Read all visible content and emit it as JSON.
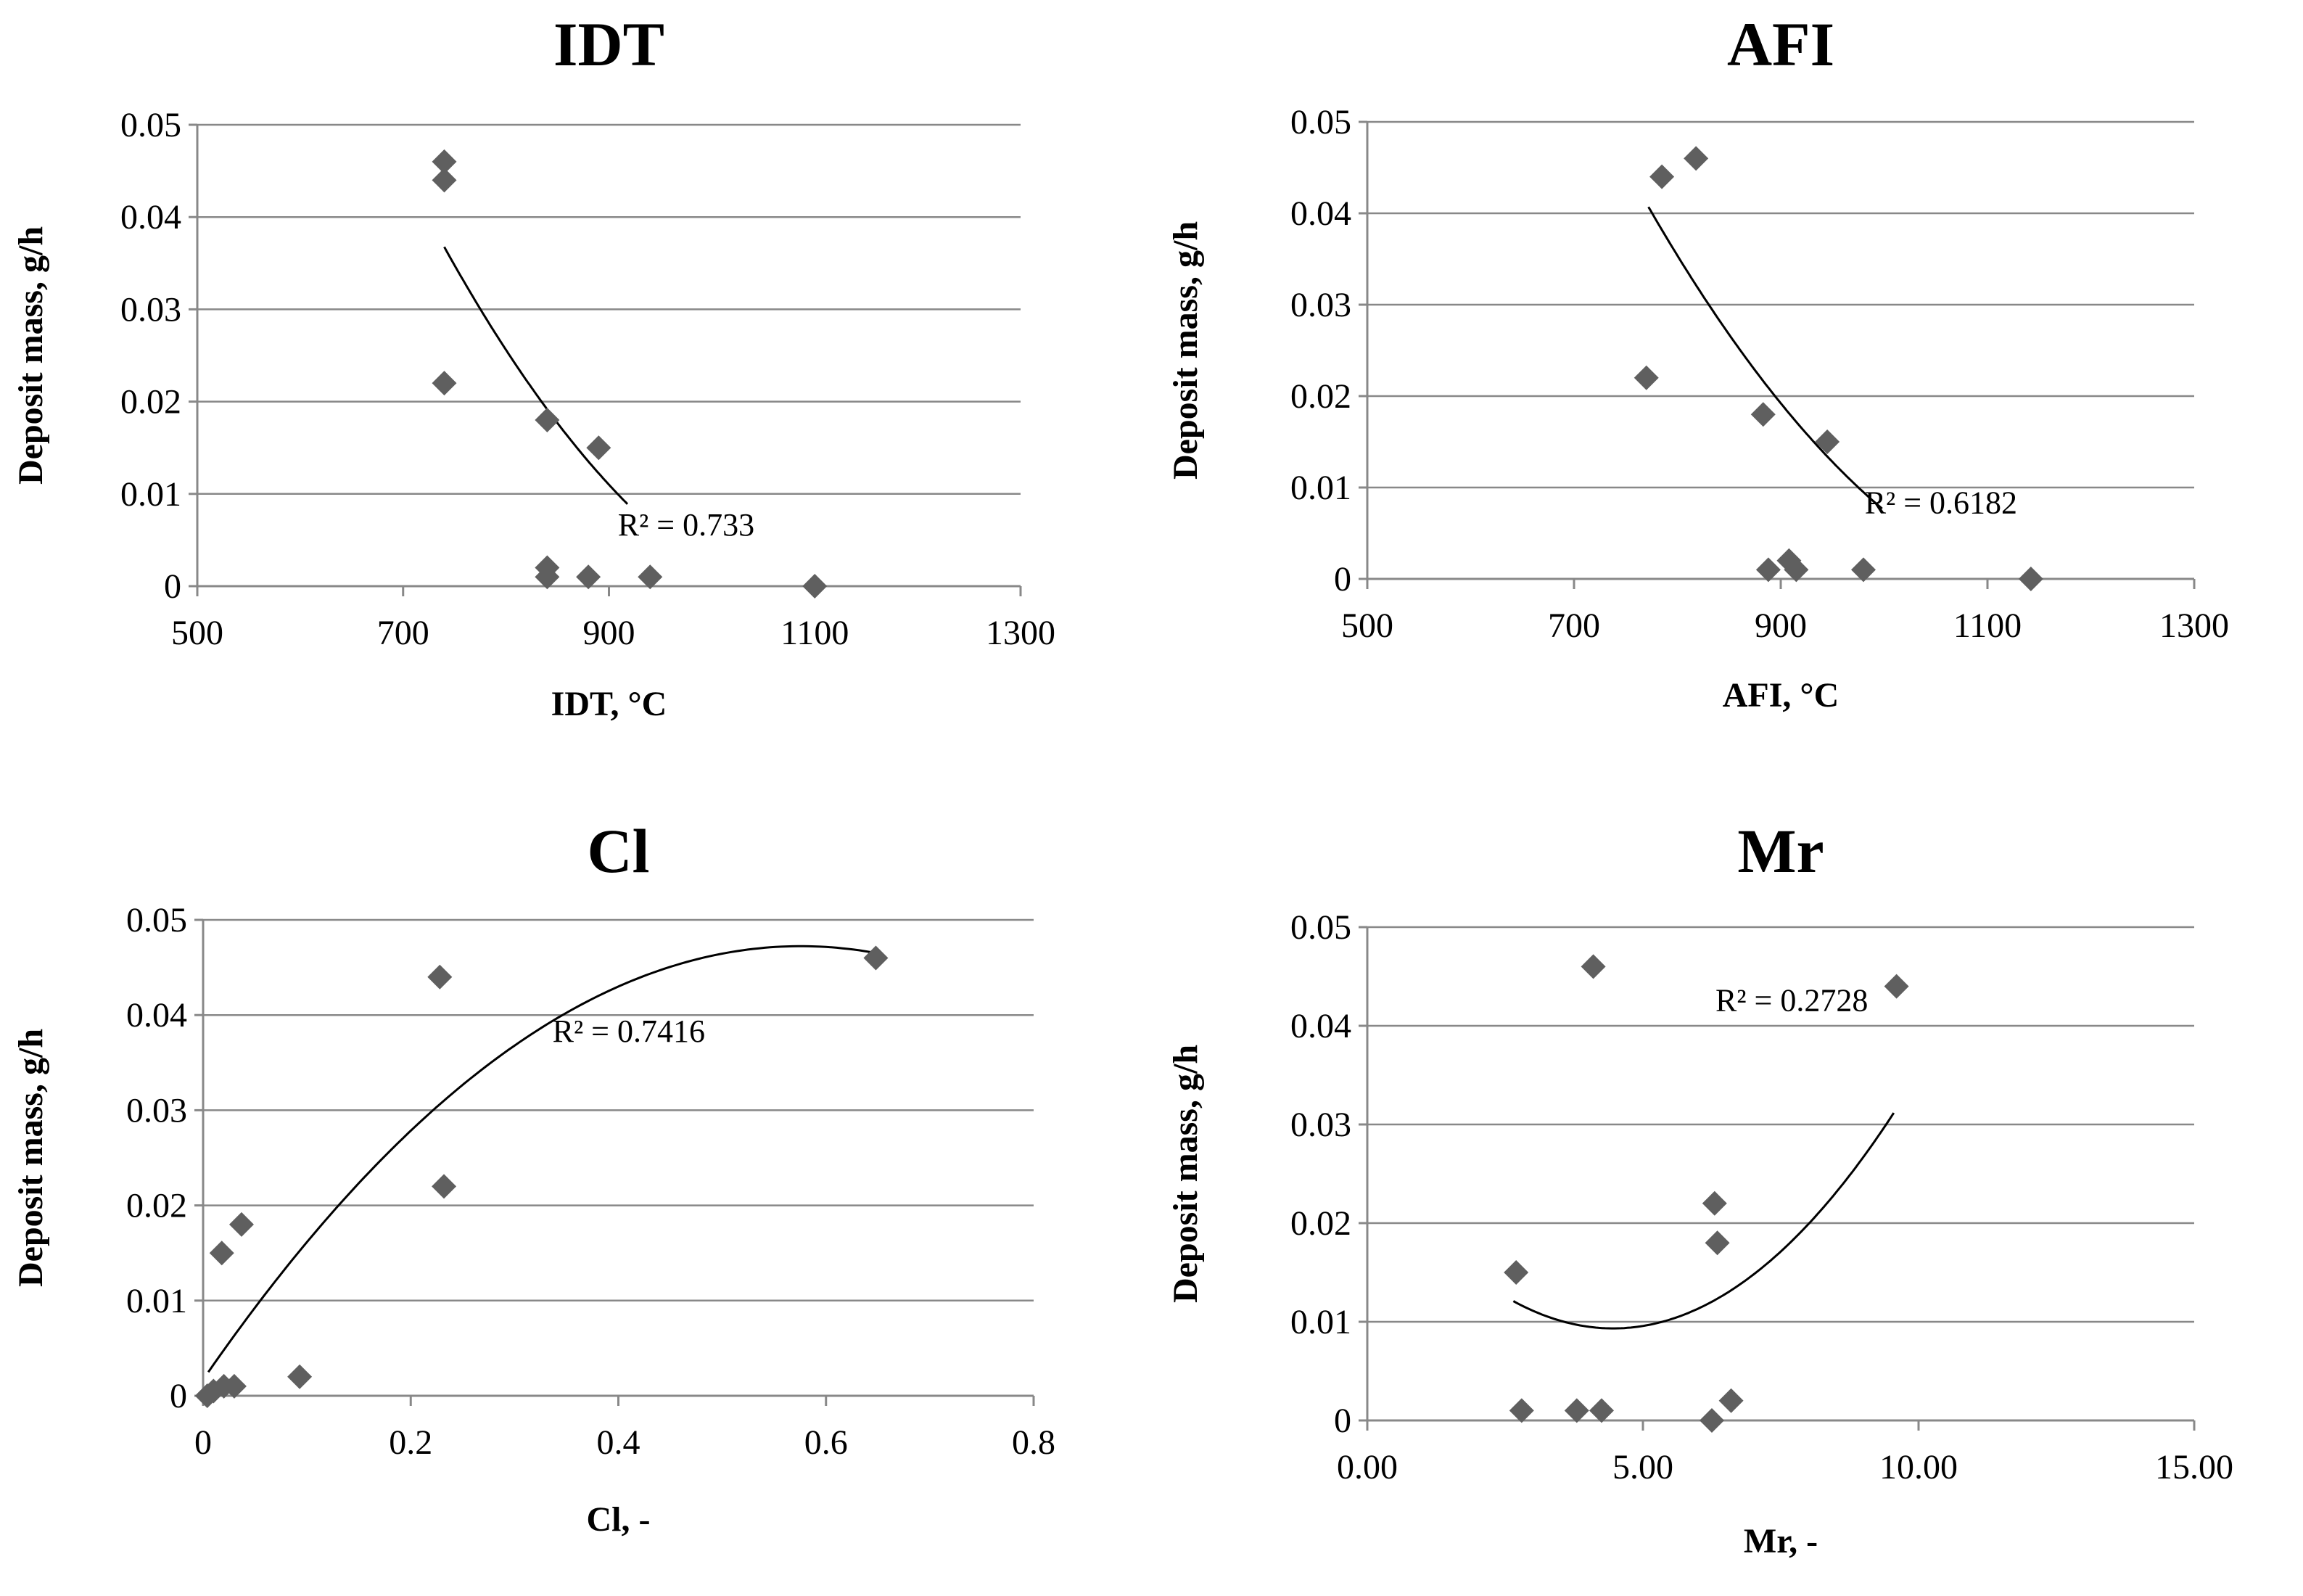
{
  "chart_data": [
    {
      "type": "scatter",
      "title": "IDT",
      "xlabel": "IDT, °C",
      "ylabel": "Deposit mass, g/h",
      "xlim": [
        500,
        1300
      ],
      "ylim": [
        0,
        0.05
      ],
      "x_ticks": [
        "500",
        "700",
        "900",
        "1100",
        "1300"
      ],
      "x_tick_values": [
        500,
        700,
        900,
        1100,
        1300
      ],
      "y_ticks": [
        "0",
        "0.01",
        "0.02",
        "0.03",
        "0.04",
        "0.05"
      ],
      "y_tick_values": [
        0,
        0.01,
        0.02,
        0.03,
        0.04,
        0.05
      ],
      "series": [
        {
          "name": "IDT",
          "x": [
            740,
            740,
            740,
            840,
            840,
            840,
            890,
            880,
            940,
            1100
          ],
          "y": [
            0.046,
            0.044,
            0.022,
            0.018,
            0.002,
            0.001,
            0.015,
            0.001,
            0.001,
            0.0
          ]
        }
      ],
      "trendline": {
        "type": "polynomial",
        "coefficients": [
          0.3224,
          -0.000571,
          2.5e-07
        ],
        "x_range": [
          740,
          918
        ]
      },
      "annotation": "R² = 0.733",
      "annotation_at": [
        975,
        0.0055
      ]
    },
    {
      "type": "scatter",
      "title": "AFI",
      "xlabel": "AFI, °C",
      "ylabel": "Deposit mass, g/h",
      "xlim": [
        500,
        1300
      ],
      "ylim": [
        0,
        0.05
      ],
      "x_ticks": [
        "500",
        "700",
        "900",
        "1100",
        "1300"
      ],
      "x_tick_values": [
        500,
        700,
        900,
        1100,
        1300
      ],
      "y_ticks": [
        "0",
        "0.01",
        "0.02",
        "0.03",
        "0.04",
        "0.05"
      ],
      "y_tick_values": [
        0,
        0.01,
        0.02,
        0.03,
        0.04,
        0.05
      ],
      "series": [
        {
          "name": "AFI",
          "x": [
            785,
            818,
            770,
            883,
            945,
            888,
            908,
            915,
            980,
            1142
          ],
          "y": [
            0.044,
            0.046,
            0.022,
            0.018,
            0.015,
            0.001,
            0.002,
            0.001,
            0.001,
            0.0
          ]
        }
      ],
      "trendline": {
        "type": "polynomial",
        "coefficients": [
          0.3245,
          -0.000539,
          2.22e-07
        ],
        "x_range": [
          772,
          998
        ]
      },
      "annotation": "R² = 0.6182",
      "annotation_at": [
        1055,
        0.0072
      ]
    },
    {
      "type": "scatter",
      "title": "Cl",
      "xlabel": "Cl, -",
      "ylabel": "Deposit mass, g/h",
      "xlim": [
        0,
        0.8
      ],
      "ylim": [
        0,
        0.05
      ],
      "x_ticks": [
        "0",
        "0.2",
        "0.4",
        "0.6",
        "0.8"
      ],
      "x_tick_values": [
        0,
        0.2,
        0.4,
        0.6,
        0.8
      ],
      "y_ticks": [
        "0",
        "0.01",
        "0.02",
        "0.03",
        "0.04",
        "0.05"
      ],
      "y_tick_values": [
        0,
        0.01,
        0.02,
        0.03,
        0.04,
        0.05
      ],
      "series": [
        {
          "name": "Cl",
          "x": [
            0.228,
            0.648,
            0.232,
            0.018,
            0.037,
            0.093,
            0.004,
            0.01,
            0.02,
            0.03
          ],
          "y": [
            0.044,
            0.046,
            0.022,
            0.015,
            0.018,
            0.002,
            0.0,
            0.0005,
            0.001,
            0.001
          ]
        }
      ],
      "trendline": {
        "type": "polynomial",
        "coefficients": [
          0.0017,
          0.1582,
          -0.1374
        ],
        "x_range": [
          0.005,
          0.648
        ]
      },
      "annotation": "R² = 0.7416",
      "annotation_at": [
        0.41,
        0.0372
      ]
    },
    {
      "type": "scatter",
      "title": "Mr",
      "xlabel": "Mr, -",
      "ylabel": "Deposit mass, g/h",
      "xlim": [
        0,
        15
      ],
      "ylim": [
        0,
        0.05
      ],
      "x_ticks": [
        "0.00",
        "5.00",
        "10.00",
        "15.00"
      ],
      "x_tick_values": [
        0,
        5,
        10,
        15
      ],
      "y_ticks": [
        "0",
        "0.01",
        "0.02",
        "0.03",
        "0.04",
        "0.05"
      ],
      "y_tick_values": [
        0,
        0.01,
        0.02,
        0.03,
        0.04,
        0.05
      ],
      "series": [
        {
          "name": "Mr",
          "x": [
            4.1,
            9.6,
            6.3,
            6.35,
            2.7,
            2.8,
            3.8,
            4.25,
            6.25,
            6.6
          ],
          "y": [
            0.046,
            0.044,
            0.022,
            0.018,
            0.015,
            0.001,
            0.001,
            0.001,
            0.0,
            0.002
          ]
        }
      ],
      "trendline": {
        "type": "polynomial",
        "coefficients": [
          0.0261,
          -0.00752,
          0.000843
        ],
        "x_range": [
          2.65,
          9.55
        ]
      },
      "annotation": "R² = 0.2728",
      "annotation_at": [
        7.7,
        0.0415
      ]
    }
  ]
}
